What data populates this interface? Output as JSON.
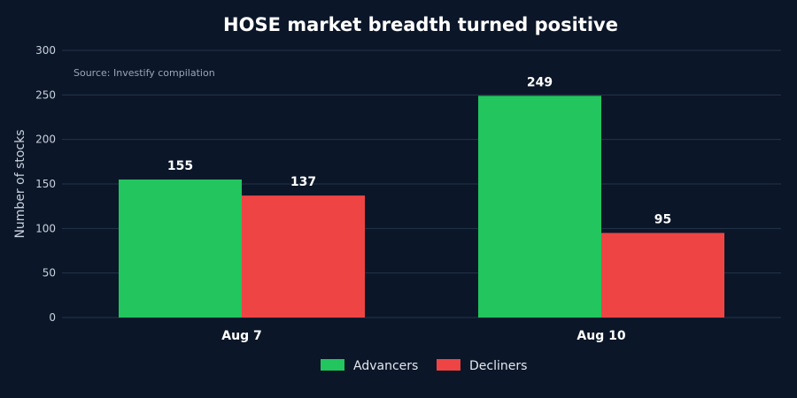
{
  "colors": {
    "background": "#0b1628",
    "advancers": "#22c55e",
    "decliners": "#ef4444",
    "grid": "#24344a"
  },
  "chart_data": {
    "type": "bar",
    "title": "HOSE market breadth turned positive",
    "source_note": "Source: Investify compilation",
    "xlabel": "",
    "ylabel": "Number of stocks",
    "categories": [
      "Aug 7",
      "Aug 10"
    ],
    "series": [
      {
        "name": "Advancers",
        "values": [
          155,
          249
        ],
        "color": "#22c55e"
      },
      {
        "name": "Decliners",
        "values": [
          137,
          95
        ],
        "color": "#ef4444"
      }
    ],
    "ylim": [
      0,
      300
    ],
    "yticks": [
      0,
      50,
      100,
      150,
      200,
      250,
      300
    ],
    "grid": true,
    "legend_position": "bottom-center",
    "data_labels": true
  }
}
